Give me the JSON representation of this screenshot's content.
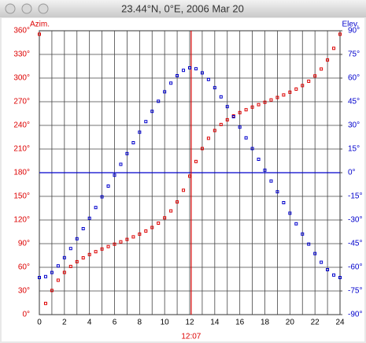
{
  "chart_data": {
    "type": "scatter",
    "title": "23.44°N, 0°E, 2006 Mar 20",
    "x": [
      0,
      0.5,
      1,
      1.5,
      2,
      2.5,
      3,
      3.5,
      4,
      4.5,
      5,
      5.5,
      6,
      6.5,
      7,
      7.5,
      8,
      8.5,
      9,
      9.5,
      10,
      10.5,
      11,
      11.5,
      12,
      12.5,
      13,
      13.5,
      14,
      14.5,
      15,
      15.5,
      16,
      16.5,
      17,
      17.5,
      18,
      18.5,
      19,
      19.5,
      20,
      20.5,
      21,
      21.5,
      22,
      22.5,
      23,
      23.5,
      24
    ],
    "series": [
      {
        "name": "Azim.",
        "color": "#dd0000",
        "axis": "y",
        "values": [
          355.6,
          14.2,
          30.6,
          43.6,
          53.5,
          61.1,
          67.1,
          72.0,
          76.2,
          79.8,
          83.2,
          86.3,
          89.3,
          92.3,
          95.4,
          98.6,
          102.1,
          106.0,
          110.5,
          116.0,
          122.7,
          131.5,
          142.9,
          157.7,
          175.6,
          194.2,
          210.6,
          223.6,
          233.5,
          241.1,
          247.1,
          252.0,
          256.2,
          259.8,
          263.2,
          266.3,
          269.3,
          272.3,
          275.4,
          278.6,
          282.1,
          286.0,
          290.5,
          296.0,
          302.7,
          311.5,
          322.9,
          337.7,
          355.6
        ]
      },
      {
        "name": "Elev.",
        "color": "#0000cc",
        "axis": "y2",
        "values": [
          -66.5,
          -65.9,
          -63.3,
          -59.1,
          -53.9,
          -48.1,
          -41.9,
          -35.5,
          -28.9,
          -22.1,
          -15.3,
          -8.5,
          -1.6,
          5.3,
          12.1,
          19.0,
          25.7,
          32.4,
          38.9,
          45.3,
          51.3,
          56.8,
          61.5,
          64.9,
          66.5,
          65.9,
          63.3,
          59.1,
          53.9,
          48.1,
          41.9,
          35.5,
          28.9,
          22.1,
          15.3,
          8.5,
          1.6,
          -5.3,
          -12.1,
          -19.0,
          -25.7,
          -32.4,
          -38.9,
          -45.3,
          -51.3,
          -56.8,
          -61.5,
          -64.9,
          -66.5
        ]
      }
    ],
    "xlim": [
      0,
      24
    ],
    "xticks": [
      0,
      2,
      4,
      6,
      8,
      10,
      12,
      14,
      16,
      18,
      20,
      22,
      24
    ],
    "xminorticks": [
      1,
      3,
      5,
      7,
      9,
      11,
      13,
      15,
      17,
      19,
      21,
      23
    ],
    "ylim": [
      0,
      360
    ],
    "yticks": [
      {
        "value": 0,
        "label": "0°"
      },
      {
        "value": 30,
        "label": "30°"
      },
      {
        "value": 60,
        "label": "60°"
      },
      {
        "value": 90,
        "label": "90°"
      },
      {
        "value": 120,
        "label": "120°"
      },
      {
        "value": 150,
        "label": "150°"
      },
      {
        "value": 180,
        "label": "180°"
      },
      {
        "value": 210,
        "label": "210°"
      },
      {
        "value": 240,
        "label": "240°"
      },
      {
        "value": 270,
        "label": "270°"
      },
      {
        "value": 300,
        "label": "300°"
      },
      {
        "value": 330,
        "label": "330°"
      },
      {
        "value": 360,
        "label": "360°"
      }
    ],
    "y2lim": [
      -90,
      90
    ],
    "y2ticks": [
      {
        "value": -90,
        "label": "-90°"
      },
      {
        "value": -75,
        "label": "-75°"
      },
      {
        "value": -60,
        "label": "-60°"
      },
      {
        "value": -45,
        "label": "-45°"
      },
      {
        "value": -30,
        "label": "-30°"
      },
      {
        "value": -15,
        "label": "-15°"
      },
      {
        "value": 0,
        "label": "0°"
      },
      {
        "value": 15,
        "label": "15°"
      },
      {
        "value": 30,
        "label": "30°"
      },
      {
        "value": 45,
        "label": "45°"
      },
      {
        "value": 60,
        "label": "60°"
      },
      {
        "value": 75,
        "label": "75°"
      },
      {
        "value": 90,
        "label": "90°"
      }
    ],
    "y2_reference": 0,
    "noon_marker": {
      "value": 12.117,
      "label": "12:07"
    },
    "grid": true
  }
}
